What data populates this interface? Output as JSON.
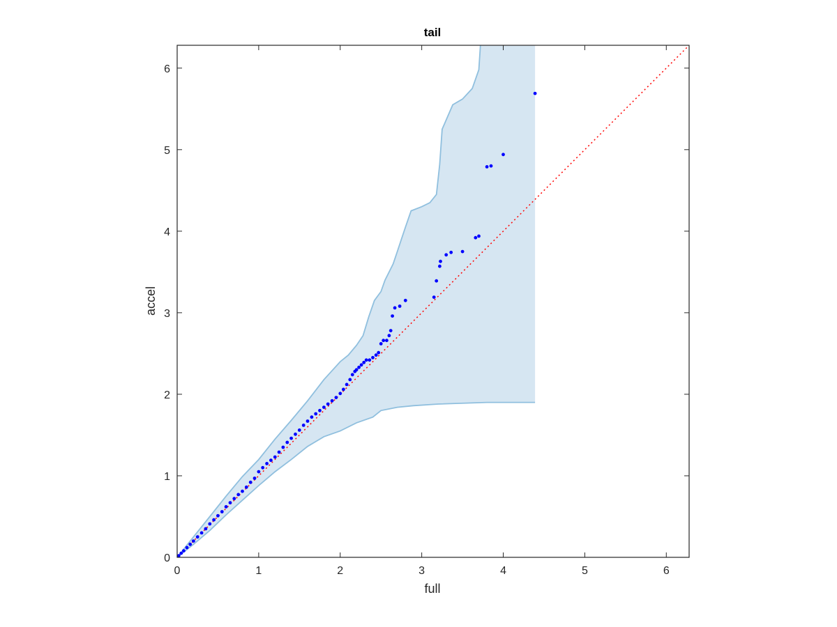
{
  "chart_data": {
    "type": "scatter",
    "title": "tail",
    "xlabel": "full",
    "ylabel": "accel",
    "xlim": [
      0,
      6.28
    ],
    "ylim": [
      0,
      6.28
    ],
    "x_ticks": [
      0,
      1,
      2,
      3,
      4,
      5,
      6
    ],
    "y_ticks": [
      0,
      1,
      2,
      3,
      4,
      5,
      6
    ],
    "reference_line": {
      "x": [
        0,
        6.28
      ],
      "y": [
        0,
        6.28
      ],
      "style": "dotted",
      "color": "#ff0000"
    },
    "band_color": "#d6e6f2",
    "band_edge_color": "#8fbfde",
    "point_color": "#0000ff",
    "band": {
      "upper": [
        [
          0,
          0
        ],
        [
          0.2,
          0.25
        ],
        [
          0.4,
          0.5
        ],
        [
          0.6,
          0.75
        ],
        [
          0.8,
          0.99
        ],
        [
          1.0,
          1.2
        ],
        [
          1.2,
          1.45
        ],
        [
          1.4,
          1.68
        ],
        [
          1.6,
          1.92
        ],
        [
          1.8,
          2.18
        ],
        [
          2.0,
          2.4
        ],
        [
          2.1,
          2.48
        ],
        [
          2.2,
          2.6
        ],
        [
          2.28,
          2.72
        ],
        [
          2.35,
          2.95
        ],
        [
          2.42,
          3.15
        ],
        [
          2.5,
          3.26
        ],
        [
          2.55,
          3.4
        ],
        [
          2.65,
          3.6
        ],
        [
          2.7,
          3.75
        ],
        [
          2.75,
          3.9
        ],
        [
          2.8,
          4.05
        ],
        [
          2.87,
          4.25
        ],
        [
          3.0,
          4.3
        ],
        [
          3.1,
          4.35
        ],
        [
          3.18,
          4.45
        ],
        [
          3.22,
          4.82
        ],
        [
          3.25,
          5.25
        ],
        [
          3.38,
          5.55
        ],
        [
          3.5,
          5.62
        ],
        [
          3.62,
          5.75
        ],
        [
          3.7,
          5.98
        ],
        [
          3.72,
          6.28
        ],
        [
          4.39,
          6.28
        ]
      ],
      "lower": [
        [
          4.39,
          1.9
        ],
        [
          3.8,
          1.9
        ],
        [
          3.2,
          1.88
        ],
        [
          2.9,
          1.86
        ],
        [
          2.7,
          1.84
        ],
        [
          2.5,
          1.8
        ],
        [
          2.4,
          1.72
        ],
        [
          2.2,
          1.65
        ],
        [
          2.0,
          1.55
        ],
        [
          1.8,
          1.48
        ],
        [
          1.6,
          1.36
        ],
        [
          1.4,
          1.2
        ],
        [
          1.2,
          1.05
        ],
        [
          1.0,
          0.88
        ],
        [
          0.8,
          0.7
        ],
        [
          0.6,
          0.52
        ],
        [
          0.4,
          0.33
        ],
        [
          0.2,
          0.16
        ],
        [
          0,
          0
        ]
      ]
    },
    "points": {
      "x": [
        0.02,
        0.05,
        0.08,
        0.12,
        0.16,
        0.2,
        0.25,
        0.3,
        0.35,
        0.4,
        0.45,
        0.5,
        0.55,
        0.6,
        0.65,
        0.7,
        0.75,
        0.8,
        0.85,
        0.9,
        0.95,
        1.0,
        1.05,
        1.1,
        1.15,
        1.2,
        1.25,
        1.3,
        1.35,
        1.4,
        1.45,
        1.5,
        1.55,
        1.6,
        1.65,
        1.7,
        1.75,
        1.8,
        1.85,
        1.9,
        1.95,
        2.0,
        2.04,
        2.08,
        2.12,
        2.15,
        2.18,
        2.2,
        2.23,
        2.26,
        2.29,
        2.32,
        2.36,
        2.4,
        2.44,
        2.47,
        2.5,
        2.53,
        2.57,
        2.6,
        2.62,
        2.64,
        2.67,
        2.73,
        2.8,
        3.15,
        3.18,
        3.22,
        3.23,
        3.3,
        3.36,
        3.5,
        3.66,
        3.7,
        3.8,
        3.85,
        4.0,
        4.39
      ],
      "y": [
        0.02,
        0.05,
        0.08,
        0.12,
        0.16,
        0.2,
        0.25,
        0.3,
        0.35,
        0.41,
        0.46,
        0.51,
        0.56,
        0.62,
        0.67,
        0.72,
        0.77,
        0.81,
        0.86,
        0.92,
        0.97,
        1.05,
        1.1,
        1.15,
        1.19,
        1.23,
        1.29,
        1.35,
        1.41,
        1.46,
        1.51,
        1.56,
        1.62,
        1.67,
        1.72,
        1.76,
        1.8,
        1.84,
        1.88,
        1.92,
        1.96,
        2.01,
        2.06,
        2.12,
        2.18,
        2.24,
        2.28,
        2.3,
        2.33,
        2.36,
        2.39,
        2.42,
        2.42,
        2.45,
        2.48,
        2.51,
        2.62,
        2.66,
        2.66,
        2.72,
        2.78,
        2.96,
        3.06,
        3.08,
        3.15,
        3.19,
        3.39,
        3.57,
        3.63,
        3.71,
        3.74,
        3.75,
        3.92,
        3.94,
        4.79,
        4.8,
        4.94,
        5.69
      ]
    }
  }
}
